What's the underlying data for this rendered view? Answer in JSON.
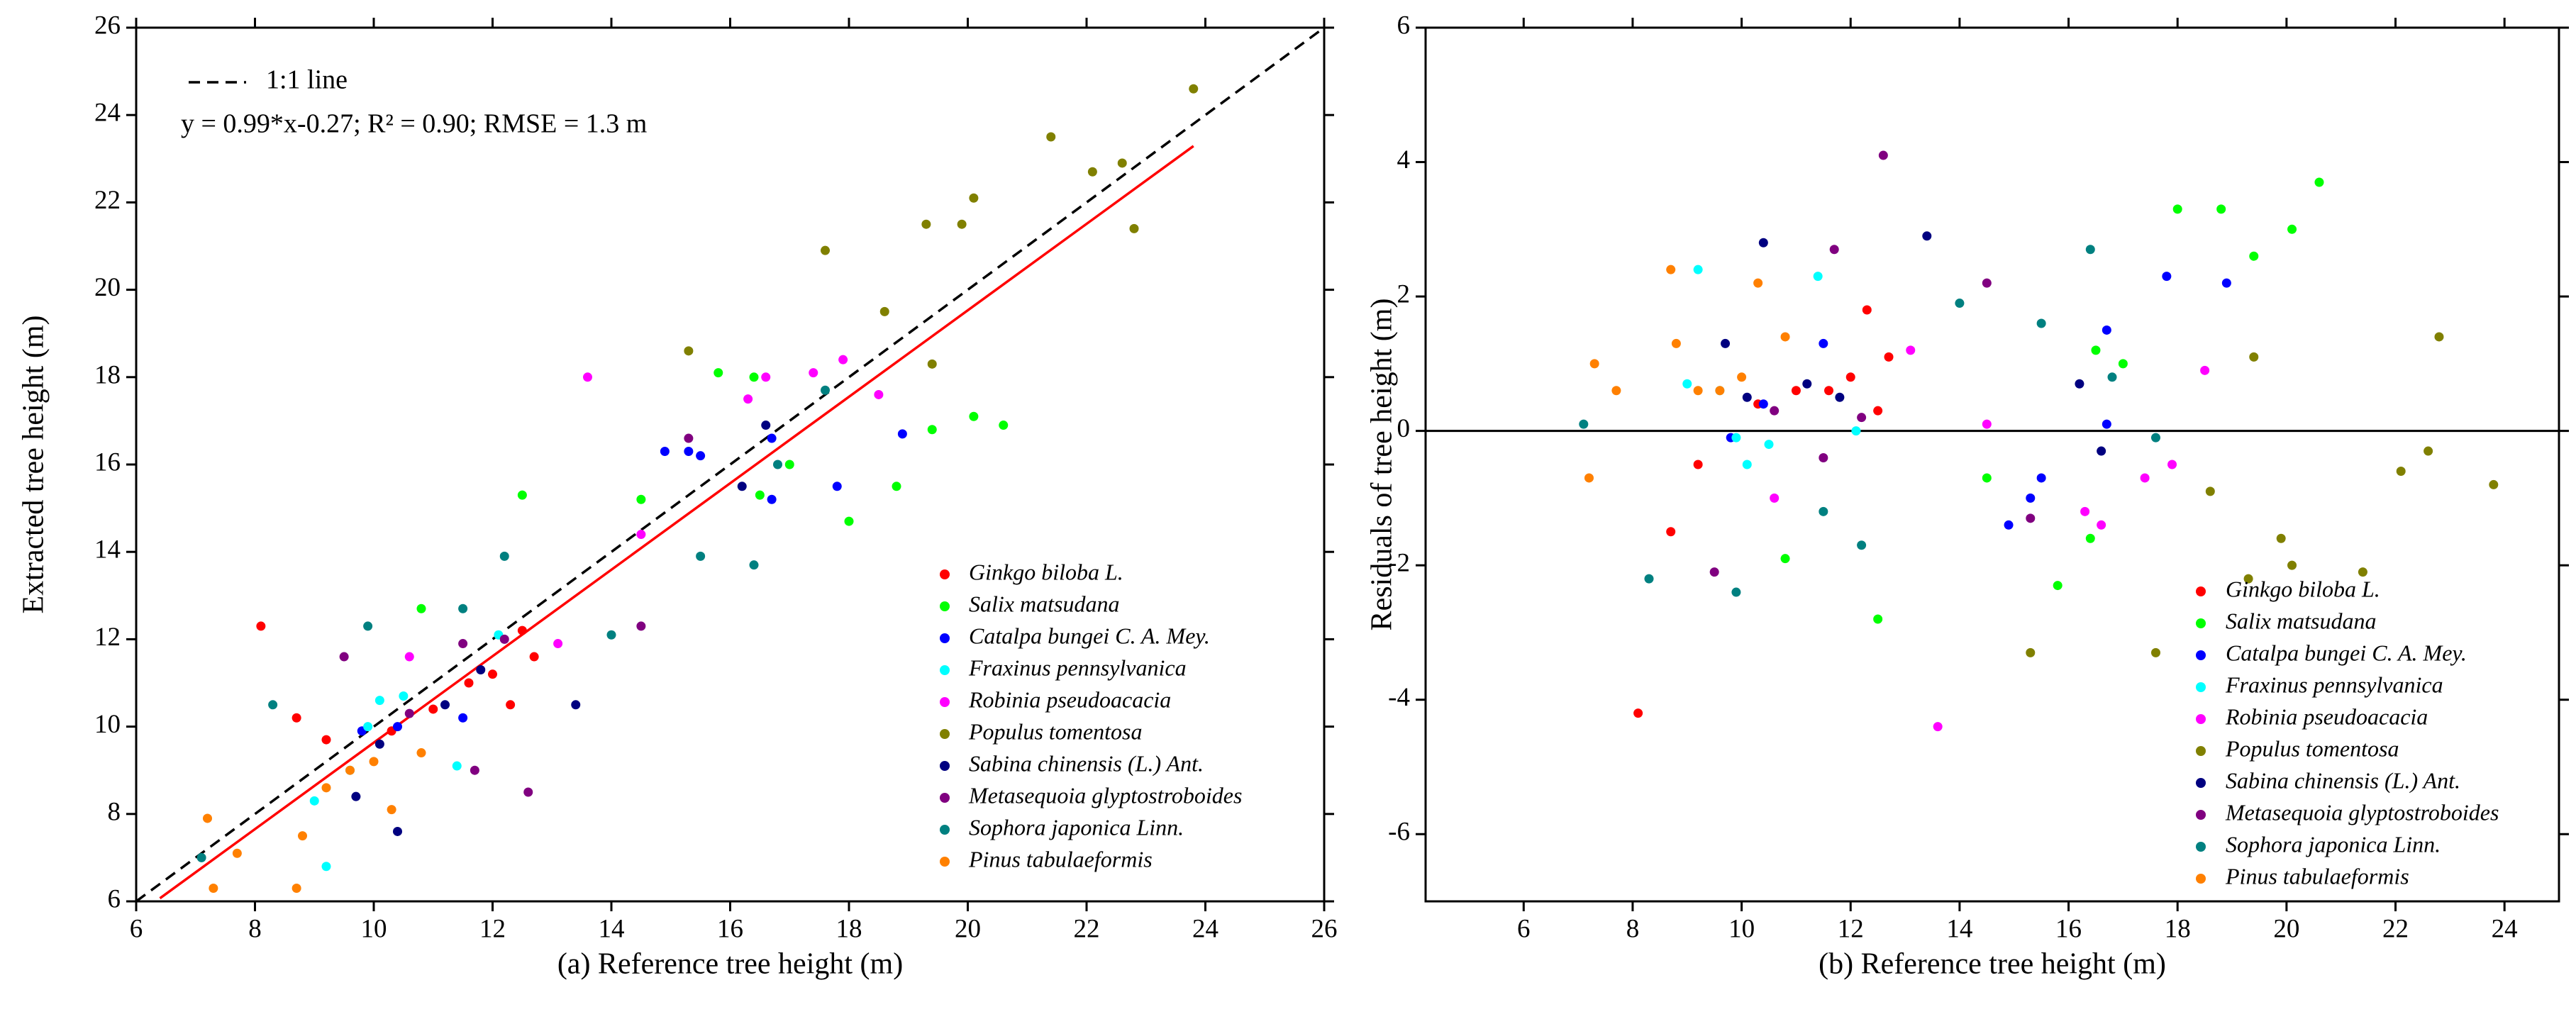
{
  "chart_data": [
    {
      "type": "scatter",
      "x_label": "(a)  Reference tree height (m)",
      "y_label": "Extracted tree height (m)",
      "xlim": [
        6,
        26
      ],
      "xticks": [
        6,
        8,
        10,
        12,
        14,
        16,
        18,
        20,
        22,
        24,
        26
      ],
      "ylim": [
        6,
        26
      ],
      "yticks": [
        6,
        8,
        10,
        12,
        14,
        16,
        18,
        20,
        22,
        24,
        26
      ],
      "legend": "lower right",
      "reference_line": {
        "name": "1:1 line",
        "x": [
          6,
          26
        ],
        "y": [
          6,
          26
        ],
        "color": "#000000"
      },
      "fit_line": {
        "x": [
          6.4,
          23.8
        ],
        "y": [
          6.07,
          23.29
        ],
        "color": "#ff0000"
      },
      "annotation": "y = 0.99*x-0.27; R² = 0.90; RMSE = 1.3 m",
      "series": [
        {
          "name": "Ginkgo biloba L.",
          "color": "#ff0000",
          "x": [
            8.1,
            8.7,
            9.2,
            10.3,
            11.0,
            11.6,
            12.0,
            12.3,
            12.7,
            12.5
          ],
          "y": [
            12.3,
            10.2,
            9.7,
            9.9,
            10.4,
            11.0,
            11.2,
            10.5,
            11.6,
            12.2
          ]
        },
        {
          "name": "Salix matsudana",
          "color": "#00ff00",
          "x": [
            10.8,
            12.5,
            15.8,
            16.5,
            17.0,
            18.0,
            18.8,
            20.1,
            20.6,
            16.4,
            14.5,
            19.4
          ],
          "y": [
            12.7,
            15.3,
            18.1,
            15.3,
            16.0,
            14.7,
            15.5,
            17.1,
            16.9,
            18.0,
            15.2,
            16.8
          ]
        },
        {
          "name": "Catalpa bungei C. A. Mey.",
          "color": "#0000ff",
          "x": [
            9.8,
            10.4,
            11.5,
            14.9,
            15.3,
            15.5,
            16.7,
            17.8,
            18.9,
            16.7
          ],
          "y": [
            9.9,
            10.0,
            10.2,
            16.3,
            16.3,
            16.2,
            15.2,
            15.5,
            16.7,
            16.6
          ]
        },
        {
          "name": "Fraxinus pennsylvanica",
          "color": "#00ffff",
          "x": [
            9.2,
            9.0,
            9.6,
            10.1,
            10.5,
            11.4,
            12.1,
            9.9
          ],
          "y": [
            6.8,
            8.3,
            9.0,
            10.6,
            10.7,
            9.1,
            12.1,
            10.0
          ]
        },
        {
          "name": "Robinia pseudoacacia",
          "color": "#ff00ff",
          "x": [
            13.6,
            10.6,
            14.5,
            16.3,
            16.6,
            17.4,
            17.9,
            18.5,
            13.1
          ],
          "y": [
            18.0,
            11.6,
            14.4,
            17.5,
            18.0,
            18.1,
            18.4,
            17.6,
            11.9
          ]
        },
        {
          "name": "Populus tomentosa",
          "color": "#808000",
          "x": [
            15.3,
            17.6,
            19.3,
            19.9,
            20.1,
            21.4,
            22.1,
            22.6,
            22.8,
            23.8,
            19.4,
            18.6
          ],
          "y": [
            18.6,
            20.9,
            21.5,
            21.5,
            22.1,
            23.5,
            22.7,
            22.9,
            21.4,
            24.6,
            18.3,
            19.5
          ]
        },
        {
          "name": "Sabina chinensis (L.) Ant.",
          "color": "#000080",
          "x": [
            9.7,
            10.4,
            11.2,
            13.4,
            16.2,
            16.6,
            11.8,
            10.1
          ],
          "y": [
            8.4,
            7.6,
            10.5,
            10.5,
            15.5,
            16.9,
            11.3,
            9.6
          ]
        },
        {
          "name": "Metasequoia glyptostroboides",
          "color": "#800080",
          "x": [
            9.5,
            11.7,
            12.6,
            14.5,
            15.3,
            11.5,
            10.6,
            12.2
          ],
          "y": [
            11.6,
            9.0,
            8.5,
            12.3,
            16.6,
            11.9,
            10.3,
            12.0
          ]
        },
        {
          "name": "Sophora japonica Linn.",
          "color": "#008080",
          "x": [
            8.3,
            9.9,
            11.5,
            12.2,
            14.0,
            15.5,
            16.4,
            16.8,
            17.6,
            7.1
          ],
          "y": [
            10.5,
            12.3,
            12.7,
            13.9,
            12.1,
            13.9,
            13.7,
            16.0,
            17.7,
            7.0
          ]
        },
        {
          "name": "Pinus tabulaeformis",
          "color": "#ff8000",
          "x": [
            7.3,
            7.2,
            7.7,
            8.7,
            8.8,
            9.2,
            10.3,
            10.8,
            10.0,
            9.6
          ],
          "y": [
            6.3,
            7.9,
            7.1,
            6.3,
            7.5,
            8.6,
            8.1,
            9.4,
            9.2,
            9.0
          ]
        }
      ]
    },
    {
      "type": "scatter",
      "x_label": "(b)  Reference tree height (m)",
      "y_label": "Residuals of tree height (m)",
      "xlim": [
        4.2,
        25
      ],
      "xticks": [
        6,
        8,
        10,
        12,
        14,
        16,
        18,
        20,
        22,
        24
      ],
      "ylim": [
        -7,
        6
      ],
      "yticks": [
        -6,
        -4,
        -2,
        0,
        2,
        4,
        6
      ],
      "legend": "lower right",
      "hline": 0,
      "series": [
        {
          "name": "Ginkgo biloba L.",
          "color": "#ff0000",
          "x": [
            8.1,
            8.7,
            9.2,
            10.3,
            11.0,
            11.6,
            12.0,
            12.3,
            12.7,
            12.5
          ],
          "y": [
            -4.2,
            -1.5,
            -0.5,
            0.4,
            0.6,
            0.6,
            0.8,
            1.8,
            1.1,
            0.3
          ]
        },
        {
          "name": "Salix matsudana",
          "color": "#00ff00",
          "x": [
            10.8,
            12.5,
            15.8,
            16.5,
            17.0,
            18.0,
            18.8,
            20.1,
            20.6,
            16.4,
            14.5,
            19.4
          ],
          "y": [
            -1.9,
            -2.8,
            -2.3,
            1.2,
            1.0,
            3.3,
            3.3,
            3.0,
            3.7,
            -1.6,
            -0.7,
            2.6
          ]
        },
        {
          "name": "Catalpa bungei C. A. Mey.",
          "color": "#0000ff",
          "x": [
            9.8,
            10.4,
            11.5,
            14.9,
            15.3,
            15.5,
            16.7,
            17.8,
            18.9,
            16.7
          ],
          "y": [
            -0.1,
            0.4,
            1.3,
            -1.4,
            -1.0,
            -0.7,
            1.5,
            2.3,
            2.2,
            0.1
          ]
        },
        {
          "name": "Fraxinus pennsylvanica",
          "color": "#00ffff",
          "x": [
            9.2,
            9.0,
            9.6,
            10.1,
            10.5,
            11.4,
            12.1,
            9.9
          ],
          "y": [
            2.4,
            0.7,
            0.6,
            -0.5,
            -0.2,
            2.3,
            0,
            -0.1
          ]
        },
        {
          "name": "Robinia pseudoacacia",
          "color": "#ff00ff",
          "x": [
            13.6,
            10.6,
            14.5,
            16.3,
            16.6,
            17.4,
            17.9,
            18.5,
            13.1
          ],
          "y": [
            -4.4,
            -1.0,
            0.1,
            -1.2,
            -1.4,
            -0.7,
            -0.5,
            0.9,
            1.2
          ]
        },
        {
          "name": "Populus tomentosa",
          "color": "#808000",
          "x": [
            15.3,
            17.6,
            19.3,
            19.9,
            20.1,
            21.4,
            22.1,
            22.6,
            22.8,
            23.8,
            19.4,
            18.6
          ],
          "y": [
            -3.3,
            -3.3,
            -2.2,
            -1.6,
            -2.0,
            -2.1,
            -0.6,
            -0.3,
            1.4,
            -0.8,
            1.1,
            -0.9
          ]
        },
        {
          "name": "Sabina chinensis (L.) Ant.",
          "color": "#000080",
          "x": [
            9.7,
            10.4,
            11.2,
            13.4,
            16.2,
            16.6,
            11.8,
            10.1
          ],
          "y": [
            1.3,
            2.8,
            0.7,
            2.9,
            0.7,
            -0.3,
            0.5,
            0.5
          ]
        },
        {
          "name": "Metasequoia glyptostroboides",
          "color": "#800080",
          "x": [
            9.5,
            11.7,
            12.6,
            14.5,
            15.3,
            11.5,
            10.6,
            12.2
          ],
          "y": [
            -2.1,
            2.7,
            4.1,
            2.2,
            -1.3,
            -0.4,
            0.3,
            0.2
          ]
        },
        {
          "name": "Sophora japonica Linn.",
          "color": "#008080",
          "x": [
            8.3,
            9.9,
            11.5,
            12.2,
            14.0,
            15.5,
            16.4,
            16.8,
            17.6,
            7.1
          ],
          "y": [
            -2.2,
            -2.4,
            -1.2,
            -1.7,
            1.9,
            1.6,
            2.7,
            0.8,
            -0.1,
            0.1
          ]
        },
        {
          "name": "Pinus tabulaeformis",
          "color": "#ff8000",
          "x": [
            7.3,
            7.2,
            7.7,
            8.7,
            8.8,
            9.2,
            10.3,
            10.8,
            10.0,
            9.6
          ],
          "y": [
            1.0,
            -0.7,
            0.6,
            2.4,
            1.3,
            0.6,
            2.2,
            1.4,
            0.8,
            0.6
          ]
        }
      ]
    }
  ]
}
